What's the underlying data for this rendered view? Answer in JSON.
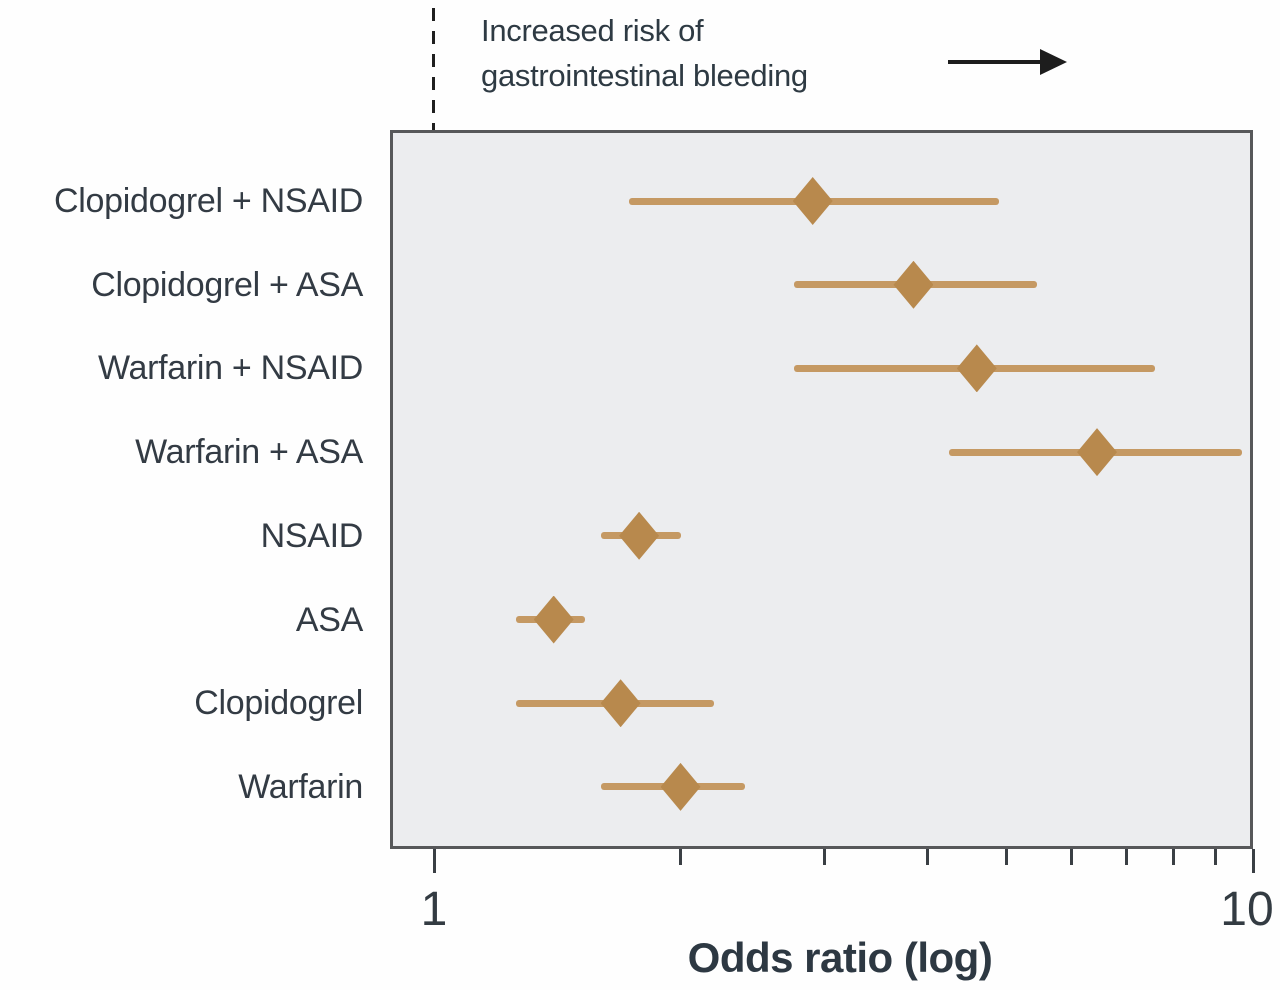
{
  "annotation": {
    "line1": "Increased risk of",
    "line2": "gastrointestinal bleeding",
    "arrow_icon": "right-arrow"
  },
  "chart_data": {
    "type": "scatter",
    "subtype": "forest-plot",
    "title": "",
    "xlabel": "Odds ratio (log)",
    "ylabel": "",
    "x_scale": "log",
    "xlim": [
      0.88,
      10
    ],
    "grid": false,
    "reference_line_x": 1,
    "x_ticks": [
      1,
      2,
      3,
      4,
      5,
      6,
      7,
      8,
      9,
      10
    ],
    "x_tick_labels": [
      {
        "value": 1,
        "label": "1"
      },
      {
        "value": 10,
        "label": "10"
      }
    ],
    "series": [
      {
        "label": "Clopidogrel + NSAID",
        "or": 2.9,
        "ci_low": 1.73,
        "ci_high": 4.9
      },
      {
        "label": "Clopidogrel + ASA",
        "or": 3.85,
        "ci_low": 2.75,
        "ci_high": 5.45
      },
      {
        "label": "Warfarin + NSAID",
        "or": 4.6,
        "ci_low": 2.75,
        "ci_high": 7.6
      },
      {
        "label": "Warfarin + ASA",
        "or": 6.45,
        "ci_low": 4.25,
        "ci_high": 9.7
      },
      {
        "label": "NSAID",
        "or": 1.78,
        "ci_low": 1.6,
        "ci_high": 2.0
      },
      {
        "label": "ASA",
        "or": 1.4,
        "ci_low": 1.26,
        "ci_high": 1.53
      },
      {
        "label": "Clopidogrel",
        "or": 1.69,
        "ci_low": 1.26,
        "ci_high": 2.2
      },
      {
        "label": "Warfarin",
        "or": 2.0,
        "ci_low": 1.6,
        "ci_high": 2.4
      }
    ]
  },
  "colors": {
    "marker": "#b8894d",
    "ci_line": "#c59963",
    "text": "#333b44",
    "plot_background": "#ecedef",
    "plot_border": "#57585a",
    "reference_line": "#1f1f1f",
    "arrow": "#1d1d1d"
  }
}
